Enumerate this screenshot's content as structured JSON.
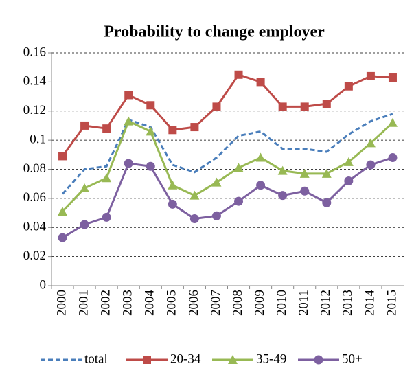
{
  "chart_data": {
    "type": "line",
    "title": "Probability to change employer",
    "categories": [
      "2000",
      "2001",
      "2002",
      "2003",
      "2004",
      "2005",
      "2006",
      "2007",
      "2008",
      "2009",
      "2010",
      "2011",
      "2012",
      "2013",
      "2014",
      "2015"
    ],
    "series": [
      {
        "name": "total",
        "color": "#4a7ebb",
        "line_style": "dashed",
        "marker": "none",
        "values": [
          0.063,
          0.08,
          0.082,
          0.114,
          0.109,
          0.083,
          0.078,
          0.088,
          0.103,
          0.106,
          0.094,
          0.094,
          0.092,
          0.104,
          0.113,
          0.118
        ]
      },
      {
        "name": "20-34",
        "color": "#be4b48",
        "line_style": "solid",
        "marker": "square",
        "values": [
          0.089,
          0.11,
          0.108,
          0.131,
          0.124,
          0.107,
          0.109,
          0.123,
          0.145,
          0.14,
          0.123,
          0.123,
          0.125,
          0.137,
          0.144,
          0.143
        ]
      },
      {
        "name": "35-49",
        "color": "#98b954",
        "line_style": "solid",
        "marker": "triangle",
        "values": [
          0.051,
          0.067,
          0.074,
          0.113,
          0.106,
          0.069,
          0.062,
          0.071,
          0.081,
          0.088,
          0.079,
          0.077,
          0.077,
          0.085,
          0.098,
          0.112
        ]
      },
      {
        "name": "50+",
        "color": "#7d60a0",
        "line_style": "solid",
        "marker": "circle",
        "values": [
          0.033,
          0.042,
          0.047,
          0.084,
          0.082,
          0.056,
          0.046,
          0.048,
          0.058,
          0.069,
          0.062,
          0.065,
          0.057,
          0.072,
          0.083,
          0.088
        ]
      }
    ],
    "ylim": [
      0,
      0.16
    ],
    "yticks": [
      0,
      0.02,
      0.04,
      0.06,
      0.08,
      0.1,
      0.12,
      0.14,
      0.16
    ],
    "grid": true,
    "legend": "bottom"
  }
}
